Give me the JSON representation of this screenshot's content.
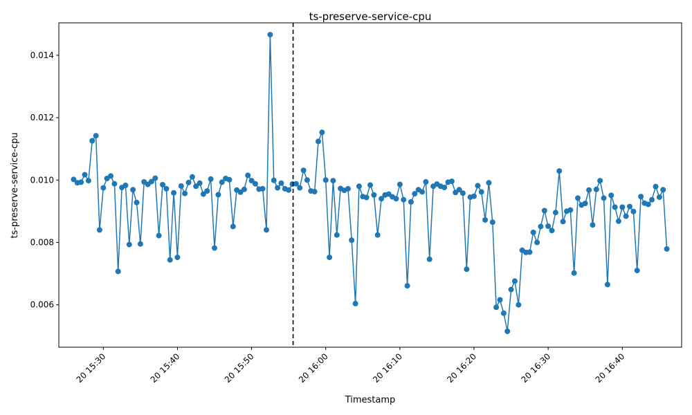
{
  "chart_data": {
    "type": "line",
    "title": "ts-preserve-service-cpu",
    "xlabel": "Timestamp",
    "ylabel": "ts-preserve-service-cpu",
    "x_start": "2024-??-20 15:26",
    "x_end": "2024-??-20 16:46",
    "xticks": [
      "20 15:30",
      "20 15:40",
      "20 15:50",
      "20 16:00",
      "20 16:10",
      "20 16:20",
      "20 16:30",
      "20 16:40"
    ],
    "yticks": [
      "0.006",
      "0.008",
      "0.010",
      "0.012",
      "0.014"
    ],
    "ylim": [
      0.00464,
      0.01504
    ],
    "xlim": [
      "20 15:24",
      "20 16:48"
    ],
    "marker_line": "20 15:55.6",
    "grid": false,
    "color": "#1f77b4",
    "series": [
      {
        "values": [
          0.01002,
          0.00991,
          0.00993,
          0.01017,
          0.00998,
          0.01126,
          0.01142,
          0.0084,
          0.00975,
          0.01005,
          0.01013,
          0.00988,
          0.00707,
          0.00976,
          0.00983,
          0.00793,
          0.00969,
          0.00928,
          0.00795,
          0.00994,
          0.00986,
          0.00995,
          0.01006,
          0.00822,
          0.00985,
          0.00972,
          0.00744,
          0.00959,
          0.00752,
          0.00981,
          0.00957,
          0.00992,
          0.0101,
          0.0098,
          0.0099,
          0.00955,
          0.00965,
          0.01003,
          0.00782,
          0.00953,
          0.00993,
          0.01005,
          0.01001,
          0.00851,
          0.00968,
          0.00961,
          0.0097,
          0.01015,
          0.00998,
          0.00988,
          0.00971,
          0.00972,
          0.0084,
          0.01466,
          0.00999,
          0.00975,
          0.0099,
          0.00972,
          0.00968,
          0.00987,
          0.00988,
          0.00975,
          0.01031,
          0.01,
          0.00965,
          0.00963,
          0.01124,
          0.01153,
          0.01,
          0.00752,
          0.00998,
          0.00824,
          0.00973,
          0.00967,
          0.00972,
          0.00807,
          0.00604,
          0.0098,
          0.00947,
          0.00944,
          0.00984,
          0.00952,
          0.00824,
          0.0094,
          0.00952,
          0.00955,
          0.00946,
          0.0094,
          0.00986,
          0.00937,
          0.00661,
          0.0093,
          0.00956,
          0.00969,
          0.00962,
          0.00994,
          0.00746,
          0.0098,
          0.00987,
          0.0098,
          0.00976,
          0.00993,
          0.00996,
          0.0096,
          0.00969,
          0.00958,
          0.00714,
          0.00945,
          0.00948,
          0.00982,
          0.00962,
          0.00872,
          0.00991,
          0.00865,
          0.00592,
          0.00616,
          0.00573,
          0.00515,
          0.00649,
          0.00676,
          0.006,
          0.00775,
          0.00768,
          0.00769,
          0.00832,
          0.008,
          0.00851,
          0.00902,
          0.00852,
          0.00838,
          0.00896,
          0.01029,
          0.00867,
          0.009,
          0.00904,
          0.00702,
          0.00942,
          0.0092,
          0.00925,
          0.00968,
          0.00856,
          0.0097,
          0.00998,
          0.00942,
          0.00665,
          0.00951,
          0.00913,
          0.00868,
          0.00913,
          0.00884,
          0.00915,
          0.00899,
          0.0071,
          0.00947,
          0.00926,
          0.00922,
          0.00937,
          0.00979,
          0.00945,
          0.00969,
          0.00779
        ]
      }
    ]
  }
}
